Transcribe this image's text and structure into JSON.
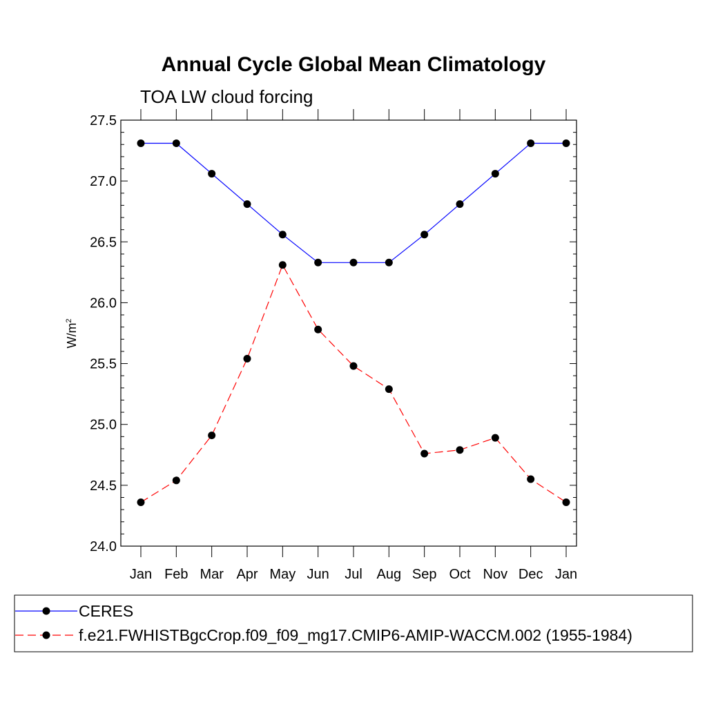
{
  "chart_data": {
    "type": "line",
    "title": "Annual Cycle Global Mean Climatology",
    "subtitle": "TOA LW cloud forcing",
    "ylabel_base": "W/m",
    "ylabel_sup": "2",
    "ylim": [
      24.0,
      27.5
    ],
    "yticks": [
      24.0,
      24.5,
      25.0,
      25.5,
      26.0,
      26.5,
      27.0,
      27.5
    ],
    "ytick_labels": [
      "24.0",
      "24.5",
      "25.0",
      "25.5",
      "26.0",
      "26.5",
      "27.0",
      "27.5"
    ],
    "categories": [
      "Jan",
      "Feb",
      "Mar",
      "Apr",
      "May",
      "Jun",
      "Jul",
      "Aug",
      "Sep",
      "Oct",
      "Nov",
      "Dec",
      "Jan"
    ],
    "series": [
      {
        "name": "CERES",
        "color": "#0000ff",
        "style": "solid",
        "values": [
          27.31,
          27.31,
          27.06,
          26.81,
          26.56,
          26.33,
          26.33,
          26.33,
          26.56,
          26.81,
          27.06,
          27.31,
          27.31
        ]
      },
      {
        "name": "f.e21.FWHISTBgcCrop.f09_f09_mg17.CMIP6-AMIP-WACCM.002 (1955-1984)",
        "color": "#ff0000",
        "style": "dashed",
        "values": [
          24.36,
          24.54,
          24.91,
          25.54,
          26.31,
          25.78,
          25.48,
          25.29,
          24.76,
          24.79,
          24.89,
          24.55,
          24.36
        ]
      }
    ],
    "marker_color": "#000000"
  }
}
